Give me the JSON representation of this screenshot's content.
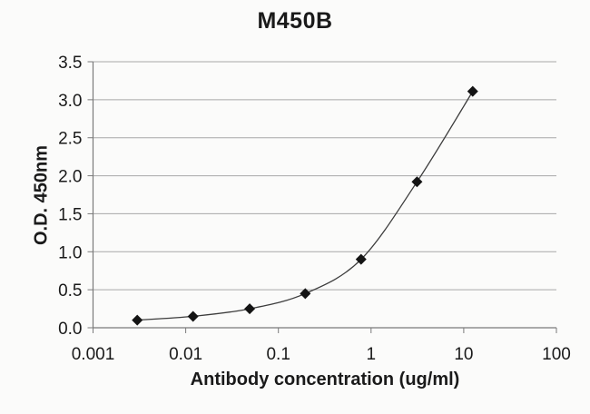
{
  "chart_data": {
    "type": "scatter",
    "title": "M450B",
    "xlabel": "Antibody concentration (ug/ml)",
    "ylabel": "O.D. 450nm",
    "x_scale": "log",
    "y_scale": "linear",
    "xlim": [
      0.001,
      100
    ],
    "ylim": [
      0,
      3.5
    ],
    "x_ticks": [
      0.001,
      0.01,
      0.1,
      1,
      10,
      100
    ],
    "x_tick_labels": [
      "0.001",
      "0.01",
      "0.1",
      "1",
      "10",
      "100"
    ],
    "y_ticks": [
      0,
      0.5,
      1,
      1.5,
      2,
      2.5,
      3,
      3.5
    ],
    "y_tick_labels": [
      "0.0",
      "0.5",
      "1.0",
      "1.5",
      "2.0",
      "2.5",
      "3.0",
      "3.5"
    ],
    "grid": "horizontal",
    "legend": "none",
    "series": [
      {
        "name": "M450B",
        "marker": "diamond",
        "line": "smooth-fit",
        "points": [
          {
            "x": 0.003,
            "y": 0.1
          },
          {
            "x": 0.012,
            "y": 0.15
          },
          {
            "x": 0.049,
            "y": 0.25
          },
          {
            "x": 0.195,
            "y": 0.45
          },
          {
            "x": 0.78,
            "y": 0.9
          },
          {
            "x": 3.13,
            "y": 1.92
          },
          {
            "x": 12.5,
            "y": 3.11
          }
        ]
      }
    ],
    "colors": {
      "background": "#fbfbfa",
      "text": "#1a1a1a",
      "gridline": "#a8a8a8",
      "axis": "#7a7a7a",
      "curve": "#3c3c3c",
      "marker": "#141414"
    }
  }
}
